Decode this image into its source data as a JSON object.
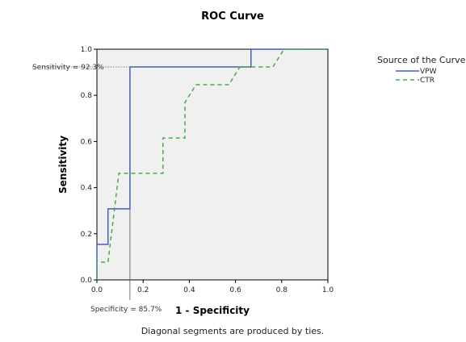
{
  "chart_data": {
    "type": "line",
    "title": "ROC Curve",
    "xlabel": "1 - Specificity",
    "ylabel": "Sensitivity",
    "xlim": [
      0,
      1
    ],
    "ylim": [
      0,
      1
    ],
    "xticks": [
      "0.0",
      "0.2",
      "0.4",
      "0.6",
      "0.8",
      "1.0"
    ],
    "yticks": [
      "0.0",
      "0.2",
      "0.4",
      "0.6",
      "0.8",
      "1.0"
    ],
    "grid": false,
    "legend": {
      "title": "Source of the Curve",
      "placement": "top-right"
    },
    "series": [
      {
        "name": "VPW",
        "color": "#4a5db0",
        "style": "solid",
        "points": [
          [
            0,
            0
          ],
          [
            0,
            0.154
          ],
          [
            0.048,
            0.154
          ],
          [
            0.048,
            0.308
          ],
          [
            0.143,
            0.308
          ],
          [
            0.143,
            0.923
          ],
          [
            0.667,
            0.923
          ],
          [
            0.667,
            1.0
          ],
          [
            1.0,
            1.0
          ]
        ]
      },
      {
        "name": "CTR",
        "color": "#3fae49",
        "style": "dashed",
        "points": [
          [
            0,
            0
          ],
          [
            0,
            0.077
          ],
          [
            0.048,
            0.077
          ],
          [
            0.095,
            0.462
          ],
          [
            0.286,
            0.462
          ],
          [
            0.286,
            0.615
          ],
          [
            0.381,
            0.615
          ],
          [
            0.381,
            0.769
          ],
          [
            0.429,
            0.846
          ],
          [
            0.571,
            0.846
          ],
          [
            0.619,
            0.923
          ],
          [
            0.762,
            0.923
          ],
          [
            0.81,
            1.0
          ],
          [
            1.0,
            1.0
          ]
        ]
      }
    ],
    "reference": {
      "sensitivity": 0.923,
      "one_minus_specificity": 0.143,
      "sensitivity_label": "Sensitivity = 92.3%",
      "specificity_label": "Specificity = 85.7%"
    },
    "footnote": "Diagonal segments are produced by ties."
  },
  "colors": {
    "plot_background": "#f0f0f0",
    "reference_line": "#555555"
  }
}
